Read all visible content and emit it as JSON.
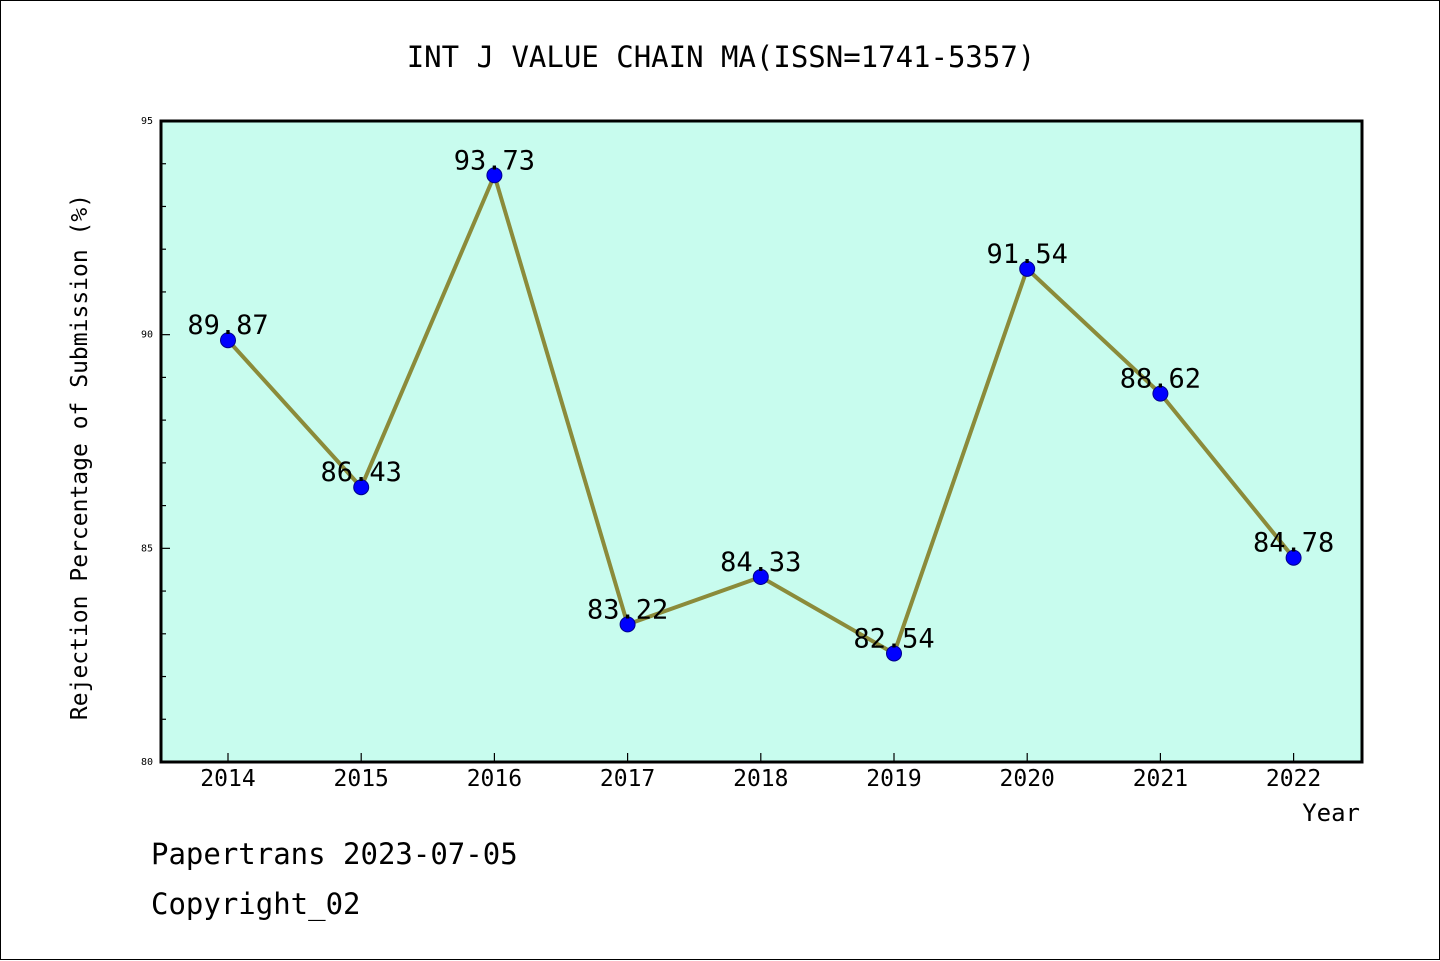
{
  "chart_data": {
    "type": "line",
    "title": "INT J VALUE CHAIN MA(ISSN=1741-5357)",
    "xlabel": "Year",
    "ylabel": "Rejection Percentage of Submission (%)",
    "categories": [
      "2014",
      "2015",
      "2016",
      "2017",
      "2018",
      "2019",
      "2020",
      "2021",
      "2022"
    ],
    "series": [
      {
        "values": [
          89.87,
          86.43,
          93.73,
          83.22,
          84.33,
          82.54,
          91.54,
          88.62,
          84.78
        ]
      }
    ],
    "data_labels": [
      "89.87",
      "86.43",
      "93.73",
      "83.22",
      "84.33",
      "82.54",
      "91.54",
      "88.62",
      "84.78"
    ],
    "ylim": [
      80,
      95
    ],
    "y_major_ticks": [
      80,
      85,
      90,
      95
    ],
    "y_tick_labels": [
      "80",
      "85",
      "90",
      "95"
    ],
    "y_minor_step": 1,
    "grid": false,
    "legend": "none",
    "colors": {
      "plot_background": "#c8fcee",
      "line": "#8b8b3a",
      "marker": "#0000ff"
    }
  },
  "footer": {
    "line1": "Papertrans 2023-07-05",
    "line2": "Copyright_02"
  }
}
